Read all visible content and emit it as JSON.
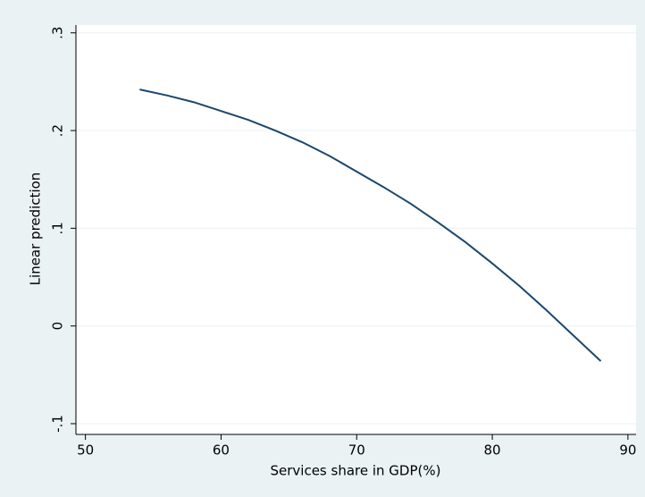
{
  "chart_data": {
    "type": "line",
    "x_label": "Services share in GDP(%)",
    "y_label": "Linear prediction",
    "x": [
      54,
      56,
      58,
      60,
      62,
      64,
      66,
      68,
      70,
      72,
      74,
      76,
      78,
      80,
      82,
      84,
      86,
      88
    ],
    "series": [
      {
        "color": "#1a476f",
        "values": [
          0.242,
          0.236,
          0.229,
          0.22,
          0.211,
          0.2,
          0.188,
          0.174,
          0.158,
          0.142,
          0.125,
          0.106,
          0.086,
          0.064,
          0.041,
          0.016,
          -0.01,
          -0.036
        ]
      }
    ],
    "xlim": [
      49.3,
      90.6
    ],
    "xticks": [
      50,
      60,
      70,
      80,
      90
    ],
    "ylim": [
      -0.111,
      0.308
    ],
    "yticks": [
      {
        "value": -0.1,
        "label": "-.1"
      },
      0,
      {
        "value": 0.1,
        "label": ".1"
      },
      {
        "value": 0.2,
        "label": ".2"
      },
      {
        "value": 0.3,
        "label": ".3"
      }
    ],
    "grid": true
  }
}
